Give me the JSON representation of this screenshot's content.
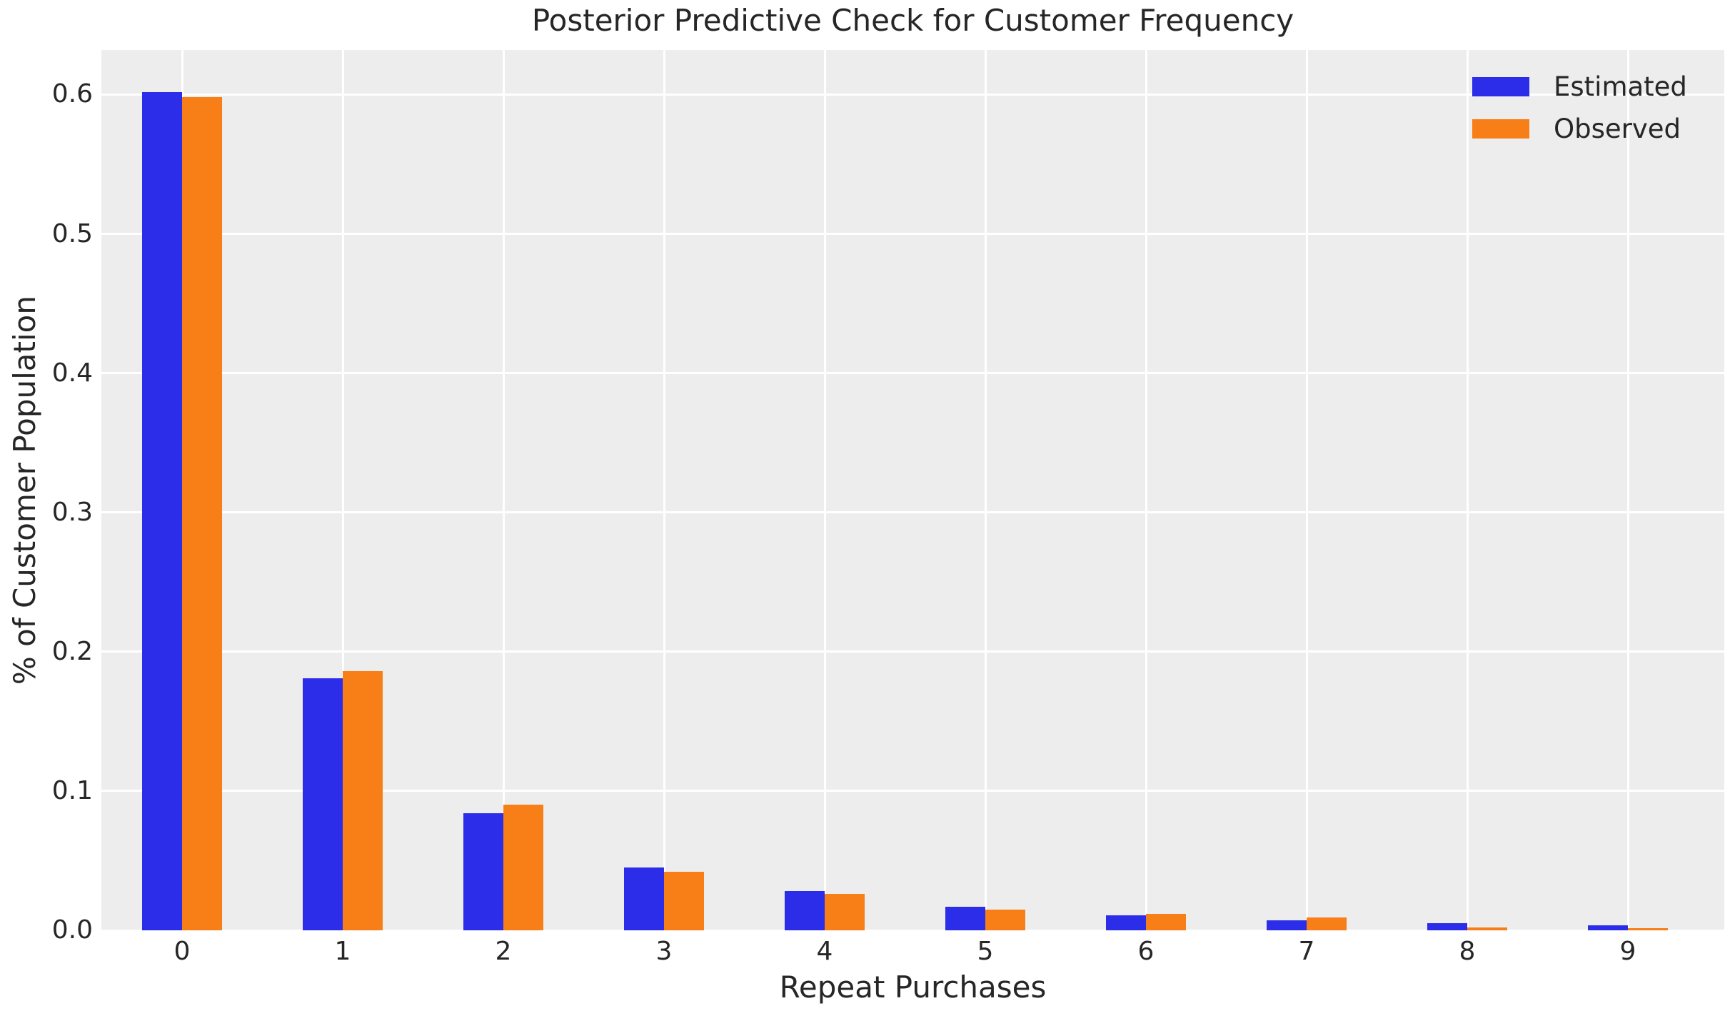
{
  "chart_data": {
    "type": "bar",
    "title": "Posterior Predictive Check for Customer Frequency",
    "xlabel": "Repeat Purchases",
    "ylabel": "% of Customer Population",
    "categories": [
      "0",
      "1",
      "2",
      "3",
      "4",
      "5",
      "6",
      "7",
      "8",
      "9"
    ],
    "series": [
      {
        "name": "Estimated",
        "color": "#2B2DE9",
        "values": [
          0.602,
          0.181,
          0.084,
          0.045,
          0.028,
          0.017,
          0.011,
          0.0072,
          0.0053,
          0.0036
        ]
      },
      {
        "name": "Observed",
        "color": "#F87E17",
        "values": [
          0.598,
          0.186,
          0.09,
          0.042,
          0.026,
          0.015,
          0.012,
          0.0092,
          0.0022,
          0.0017
        ]
      }
    ],
    "ylim": [
      0,
      0.632
    ],
    "yticks": [
      0.0,
      0.1,
      0.2,
      0.3,
      0.4,
      0.5,
      0.6
    ],
    "ytick_labels": [
      "0.0",
      "0.1",
      "0.2",
      "0.3",
      "0.4",
      "0.5",
      "0.6"
    ],
    "grid": true,
    "legend_position": "upper right",
    "colors": {
      "plot_background": "#EDEDED",
      "gridline": "#FFFFFF",
      "text": "#262626"
    }
  }
}
